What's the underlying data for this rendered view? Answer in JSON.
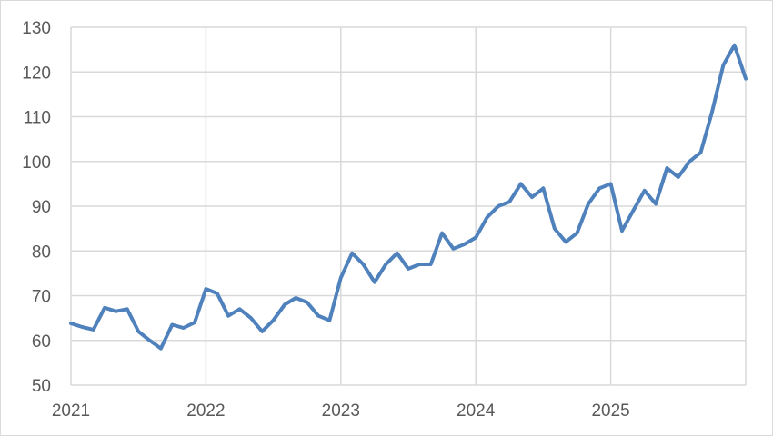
{
  "chart_data": {
    "type": "line",
    "title": "",
    "xlabel": "",
    "ylabel": "",
    "x_ticks": [
      "2021",
      "2022",
      "2023",
      "2024",
      "2025"
    ],
    "y_ticks": [
      "50",
      "60",
      "70",
      "80",
      "90",
      "100",
      "110",
      "120",
      "130"
    ],
    "xlim": [
      "2021-01",
      "2026-01"
    ],
    "ylim": [
      50,
      130
    ],
    "grid": true,
    "legend": "none",
    "series": [
      {
        "color": "#4f81bd",
        "points": [
          [
            "2021-01",
            63.8
          ],
          [
            "2021-02",
            63.0
          ],
          [
            "2021-03",
            62.4
          ],
          [
            "2021-04",
            67.3
          ],
          [
            "2021-05",
            66.5
          ],
          [
            "2021-06",
            67.0
          ],
          [
            "2021-07",
            62.0
          ],
          [
            "2021-08",
            60.0
          ],
          [
            "2021-09",
            58.2
          ],
          [
            "2021-10",
            63.5
          ],
          [
            "2021-11",
            62.8
          ],
          [
            "2021-12",
            64.0
          ],
          [
            "2022-01",
            71.5
          ],
          [
            "2022-02",
            70.5
          ],
          [
            "2022-03",
            65.5
          ],
          [
            "2022-04",
            67.0
          ],
          [
            "2022-05",
            65.0
          ],
          [
            "2022-06",
            62.0
          ],
          [
            "2022-07",
            64.5
          ],
          [
            "2022-08",
            68.0
          ],
          [
            "2022-09",
            69.5
          ],
          [
            "2022-10",
            68.5
          ],
          [
            "2022-11",
            65.5
          ],
          [
            "2022-12",
            64.5
          ],
          [
            "2023-01",
            74.0
          ],
          [
            "2023-02",
            79.5
          ],
          [
            "2023-03",
            77.0
          ],
          [
            "2023-04",
            73.0
          ],
          [
            "2023-05",
            77.0
          ],
          [
            "2023-06",
            79.5
          ],
          [
            "2023-07",
            76.0
          ],
          [
            "2023-08",
            77.0
          ],
          [
            "2023-09",
            77.0
          ],
          [
            "2023-10",
            84.0
          ],
          [
            "2023-11",
            80.5
          ],
          [
            "2023-12",
            81.5
          ],
          [
            "2024-01",
            83.0
          ],
          [
            "2024-02",
            87.5
          ],
          [
            "2024-03",
            90.0
          ],
          [
            "2024-04",
            91.0
          ],
          [
            "2024-05",
            95.0
          ],
          [
            "2024-06",
            92.0
          ],
          [
            "2024-07",
            94.0
          ],
          [
            "2024-08",
            85.0
          ],
          [
            "2024-09",
            82.0
          ],
          [
            "2024-10",
            84.0
          ],
          [
            "2024-11",
            90.5
          ],
          [
            "2024-12",
            94.0
          ],
          [
            "2025-01",
            95.0
          ],
          [
            "2025-02",
            84.5
          ],
          [
            "2025-03",
            89.0
          ],
          [
            "2025-04",
            93.5
          ],
          [
            "2025-05",
            90.5
          ],
          [
            "2025-06",
            98.5
          ],
          [
            "2025-07",
            96.5
          ],
          [
            "2025-08",
            100.0
          ],
          [
            "2025-09",
            102.0
          ],
          [
            "2025-10",
            111.0
          ],
          [
            "2025-11",
            121.5
          ],
          [
            "2025-12",
            126.0
          ],
          [
            "2026-01",
            118.5
          ]
        ]
      }
    ]
  }
}
